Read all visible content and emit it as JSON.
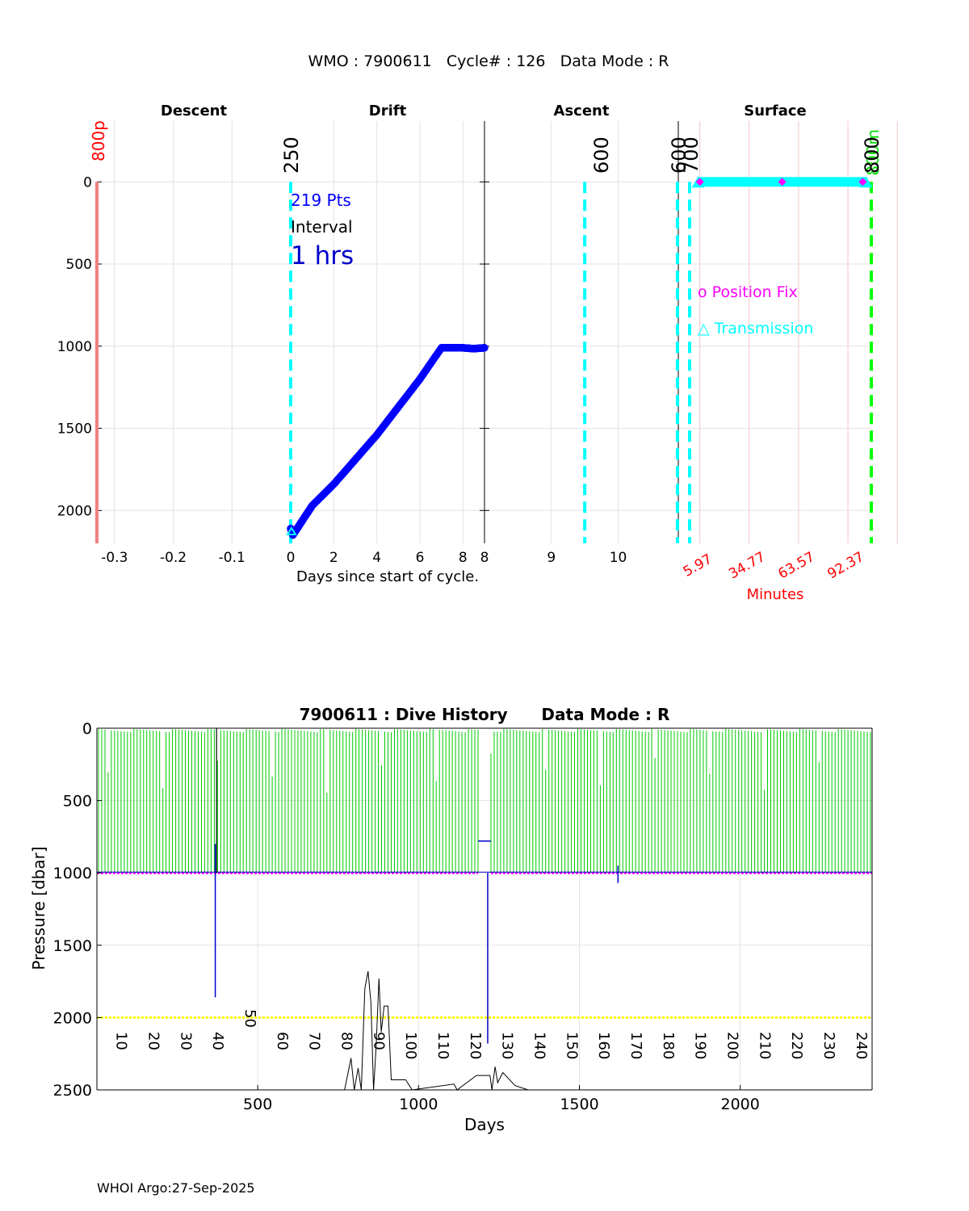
{
  "header": {
    "title": "WMO : 7900611   Cycle# : 126   Data Mode : R"
  },
  "footer": {
    "credit": "WHOI Argo:27-Sep-2025"
  },
  "colors": {
    "drift_points": "#0000ff",
    "cycle_markers": "#00ffff",
    "descent_start": "#f08080",
    "end_marker": "#00ff00",
    "position_fix": "#ff00ff",
    "minutes_labels": "#ff0000",
    "history_surface": "#00cc00",
    "history_park": "#ff00ff",
    "history_max": "#ffff00",
    "history_drift": "#0000cc",
    "history_bottom": "#000000"
  },
  "chart_data": [
    {
      "type": "scatter",
      "panels": [
        "Descent",
        "Drift",
        "Ascent",
        "Surface"
      ],
      "xlabel": "Days since start of cycle.",
      "ylabel": "",
      "y_reversed": true,
      "ylim": [
        2200,
        -370
      ],
      "yticks": [
        "0",
        "500",
        "1000",
        "1500",
        "2000"
      ],
      "descent": {
        "xlim": [
          -0.33,
          0.0
        ],
        "xticks": [
          "-0.3",
          "-0.2",
          "-0.1",
          "0"
        ]
      },
      "drift": {
        "xlim": [
          0,
          9
        ],
        "xticks": [
          "0",
          "2",
          "4",
          "6",
          "8"
        ]
      },
      "ascent": {
        "xlim": [
          8,
          10.9
        ],
        "xticks": [
          "8",
          "9",
          "10"
        ]
      },
      "surface": {
        "xlabel": "Minutes",
        "xticks": [
          "5.97",
          "34.77",
          "63.57",
          "92.37"
        ],
        "grid_minutes": [
          5.97,
          34.77,
          63.57,
          92.37,
          121.17
        ]
      },
      "annotations": {
        "points_label": "219 Pts",
        "interval_label": "Interval",
        "interval_value": "1 hrs",
        "position_fix_legend": "o Position Fix",
        "transmission_legend": "△ Transmission"
      },
      "markers": [
        {
          "label": "800p",
          "panel": "descent",
          "x": -0.33
        },
        {
          "label": "250",
          "panel": "drift",
          "x": 0
        },
        {
          "label": "600",
          "panel": "ascent",
          "x": 9.5
        },
        {
          "label": "600",
          "panel": "ascent",
          "x": 10.85
        },
        {
          "label": "700",
          "panel": "surface",
          "minutes": 0
        },
        {
          "label": "800",
          "panel": "surface",
          "minutes": 106
        },
        {
          "label": "800m",
          "panel": "surface",
          "minutes": 106
        }
      ],
      "drift_profile": {
        "name": "Drift pressure",
        "points": [
          [
            0.0,
            2110
          ],
          [
            0.1,
            2150
          ],
          [
            0.5,
            2070
          ],
          [
            1,
            1970
          ],
          [
            2,
            1840
          ],
          [
            3,
            1690
          ],
          [
            4,
            1540
          ],
          [
            5,
            1370
          ],
          [
            6,
            1200
          ],
          [
            7,
            1010
          ],
          [
            7.5,
            1010
          ],
          [
            8,
            1010
          ],
          [
            8.5,
            1015
          ],
          [
            9.0,
            1010
          ]
        ]
      },
      "surface_transmission": {
        "pressure": 0,
        "start_minutes": 5,
        "end_minutes": 103
      },
      "position_fixes": {
        "pressure": 0,
        "minutes": [
          5.97,
          54,
          101
        ]
      }
    },
    {
      "type": "line",
      "title": "7900611 : Dive History      Data Mode : R",
      "xlabel": "Days",
      "ylabel": "Pressure [dbar]",
      "y_reversed": true,
      "xlim": [
        0,
        2410
      ],
      "ylim": [
        0,
        2500
      ],
      "xticks": [
        "500",
        "1000",
        "1500",
        "2000"
      ],
      "yticks": [
        "0",
        "500",
        "1000",
        "1500",
        "2000",
        "2500"
      ],
      "park_pressure": 1000,
      "max_pressure_line": 2000,
      "cycle_labels": [
        "10",
        "20",
        "30",
        "40",
        "50",
        "60",
        "70",
        "80",
        "90",
        "100",
        "110",
        "120",
        "130",
        "140",
        "150",
        "160",
        "170",
        "180",
        "190",
        "200",
        "210",
        "220",
        "230",
        "240"
      ],
      "cycle_label_days": [
        87,
        187,
        287,
        387,
        487,
        587,
        687,
        787,
        887,
        987,
        1087,
        1187,
        1287,
        1387,
        1487,
        1587,
        1687,
        1787,
        1887,
        1987,
        2087,
        2187,
        2287,
        2387
      ],
      "gap_days": [
        [
          1185,
          1225
        ]
      ],
      "drift_excursions": [
        {
          "day": 368,
          "min": 800,
          "max": 1860
        },
        {
          "day": 1215,
          "min": 1000,
          "max": 2180
        },
        {
          "day": 1620,
          "min": 950,
          "max": 1070
        }
      ],
      "bottom_trace": [
        [
          770,
          2500
        ],
        [
          790,
          2280
        ],
        [
          800,
          2500
        ],
        [
          812,
          2350
        ],
        [
          822,
          2500
        ],
        [
          833,
          1800
        ],
        [
          843,
          1680
        ],
        [
          852,
          1900
        ],
        [
          860,
          2500
        ],
        [
          868,
          2200
        ],
        [
          877,
          1730
        ],
        [
          884,
          2100
        ],
        [
          893,
          1920
        ],
        [
          905,
          1920
        ],
        [
          915,
          2430
        ],
        [
          960,
          2430
        ],
        [
          980,
          2500
        ],
        [
          1110,
          2460
        ],
        [
          1120,
          2500
        ],
        [
          1180,
          2400
        ],
        [
          1222,
          2400
        ],
        [
          1228,
          2500
        ],
        [
          1238,
          2340
        ],
        [
          1246,
          2450
        ],
        [
          1262,
          2380
        ],
        [
          1300,
          2470
        ],
        [
          1340,
          2500
        ]
      ]
    }
  ]
}
